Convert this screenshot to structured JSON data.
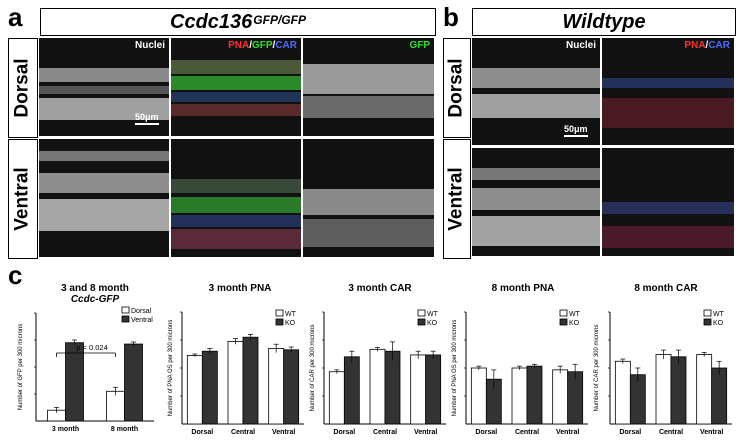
{
  "panel_a": {
    "letter": "a",
    "title_main": "Ccdc136",
    "title_sup": "GFP/GFP",
    "rows": [
      "Dorsal",
      "Ventral"
    ],
    "col_labels": [
      "Nuclei",
      "PNA",
      "/",
      "GFP",
      "/",
      "CAR",
      "GFP"
    ],
    "scale": "50μm"
  },
  "panel_b": {
    "letter": "b",
    "title_main": "Wildtype",
    "rows": [
      "Dorsal",
      "Ventral"
    ],
    "col_labels": [
      "Nuclei",
      "PNA",
      "/",
      "CAR"
    ],
    "scale": "50μm"
  },
  "panel_c": {
    "letter": "c"
  },
  "colors": {
    "white_bar": "#ffffff",
    "dark_bar": "#333333",
    "pna": "#ff3030",
    "gfp": "#2ee02e",
    "car": "#4a6cff"
  },
  "chart_data": [
    {
      "type": "bar",
      "title": "3 and 8 month",
      "subtitle": "Ccdc-GFP",
      "ylabel": "Number of GFP per 300 microns",
      "categories": [
        "3 month",
        "8 month"
      ],
      "series": [
        {
          "name": "Dorsal",
          "values": [
            8,
            22
          ]
        },
        {
          "name": "Ventral",
          "values": [
            58,
            57
          ]
        }
      ],
      "errors": [
        [
          2,
          3
        ],
        [
          2,
          1.5
        ]
      ],
      "ylim": [
        0,
        80
      ],
      "annotation": "p < 0.024",
      "legend": "top-right"
    },
    {
      "type": "bar",
      "title": "3 month PNA",
      "ylabel": "Number of PNA OS per 300 microns",
      "categories": [
        "Dorsal",
        "Central",
        "Ventral"
      ],
      "series": [
        {
          "name": "WT",
          "values": [
            49,
            59,
            54
          ]
        },
        {
          "name": "KO",
          "values": [
            52,
            62,
            53
          ]
        }
      ],
      "errors": [
        [
          1,
          2,
          3
        ],
        [
          2,
          2,
          2
        ]
      ],
      "ylim": [
        0,
        80
      ],
      "legend": "top-right"
    },
    {
      "type": "bar",
      "title": "3 month CAR",
      "ylabel": "Number of CAR per 300 microns",
      "categories": [
        "Dorsal",
        "Central",
        "Ventral"
      ],
      "series": [
        {
          "name": "WT",
          "values": [
            28,
            40,
            37
          ]
        },
        {
          "name": "KO",
          "values": [
            36,
            39,
            37
          ]
        }
      ],
      "errors": [
        [
          1,
          1,
          2
        ],
        [
          3,
          5,
          2
        ]
      ],
      "ylim": [
        0,
        60
      ],
      "legend": "top-right"
    },
    {
      "type": "bar",
      "title": "8 month PNA",
      "ylabel": "Number of PNA OS per 300 microns",
      "categories": [
        "Dorsal",
        "Central",
        "Ventral"
      ],
      "series": [
        {
          "name": "WT",
          "values": [
            30,
            30,
            29
          ]
        },
        {
          "name": "KO",
          "values": [
            24,
            31,
            28
          ]
        }
      ],
      "errors": [
        [
          1,
          1,
          2
        ],
        [
          5,
          1,
          4
        ]
      ],
      "ylim": [
        0,
        60
      ],
      "legend": "top-right"
    },
    {
      "type": "bar",
      "title": "8 month CAR",
      "ylabel": "Number of CAR per 300 microns",
      "categories": [
        "Dorsal",
        "Central",
        "Ventral"
      ],
      "series": [
        {
          "name": "WT",
          "values": [
            28,
            31,
            31
          ]
        },
        {
          "name": "KO",
          "values": [
            22,
            30,
            25
          ]
        }
      ],
      "errors": [
        [
          1,
          2,
          1
        ],
        [
          3,
          3,
          3
        ]
      ],
      "ylim": [
        0,
        50
      ],
      "legend": "top-right"
    }
  ]
}
